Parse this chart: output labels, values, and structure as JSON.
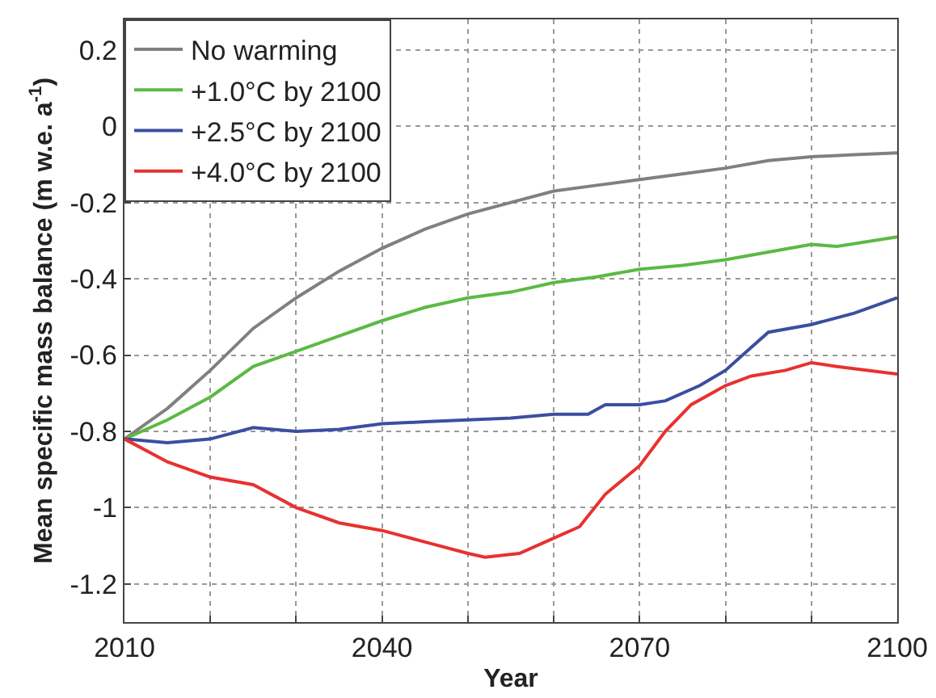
{
  "chart_data": {
    "type": "line",
    "xlabel": "Year",
    "ylabel": "Mean specific mass balance (m w.e. a$^{-1}$)",
    "xlim": [
      2010,
      2100
    ],
    "xticks": [
      2010,
      {
        "value": 2020,
        "label": null
      },
      {
        "value": 2030,
        "label": null
      },
      2040,
      {
        "value": 2050,
        "label": null
      },
      {
        "value": 2060,
        "label": null
      },
      2070,
      {
        "value": 2080,
        "label": null
      },
      {
        "value": 2090,
        "label": null
      },
      2100
    ],
    "ylim": [
      -1.3,
      0.28
    ],
    "yticks": [
      -1.2,
      -1,
      -0.8,
      -0.6,
      -0.4,
      -0.2,
      0,
      0.2
    ],
    "grid": true,
    "legend": "top left",
    "marker": "none",
    "line_style": "solid",
    "series": [
      {
        "name": "No warming",
        "color": "#808080",
        "x": [
          2010,
          2015,
          2020,
          2025,
          2030,
          2035,
          2040,
          2045,
          2050,
          2055,
          2060,
          2065,
          2070,
          2075,
          2080,
          2085,
          2090,
          2095,
          2100
        ],
        "values": [
          -0.82,
          -0.74,
          -0.64,
          -0.53,
          -0.45,
          -0.38,
          -0.32,
          -0.27,
          -0.23,
          -0.2,
          -0.17,
          -0.155,
          -0.14,
          -0.125,
          -0.11,
          -0.09,
          -0.08,
          -0.075,
          -0.07
        ]
      },
      {
        "name": "+1.0°C by 2100",
        "color": "#5cb944",
        "x": [
          2010,
          2015,
          2020,
          2025,
          2030,
          2035,
          2040,
          2045,
          2050,
          2055,
          2060,
          2065,
          2070,
          2075,
          2080,
          2085,
          2090,
          2093,
          2100
        ],
        "values": [
          -0.82,
          -0.77,
          -0.71,
          -0.63,
          -0.59,
          -0.55,
          -0.51,
          -0.475,
          -0.45,
          -0.435,
          -0.41,
          -0.395,
          -0.375,
          -0.365,
          -0.35,
          -0.33,
          -0.31,
          -0.315,
          -0.29
        ]
      },
      {
        "name": "+2.5°C by 2100",
        "color": "#3a4fa0",
        "x": [
          2010,
          2015,
          2020,
          2025,
          2030,
          2035,
          2040,
          2045,
          2050,
          2055,
          2060,
          2064,
          2066,
          2070,
          2073,
          2077,
          2080,
          2083,
          2085,
          2090,
          2095,
          2100
        ],
        "values": [
          -0.82,
          -0.83,
          -0.82,
          -0.79,
          -0.8,
          -0.795,
          -0.78,
          -0.775,
          -0.77,
          -0.765,
          -0.755,
          -0.755,
          -0.73,
          -0.73,
          -0.72,
          -0.68,
          -0.64,
          -0.58,
          -0.54,
          -0.52,
          -0.49,
          -0.45
        ]
      },
      {
        "name": "+4.0°C by 2100",
        "color": "#e8312f",
        "x": [
          2010,
          2015,
          2020,
          2025,
          2030,
          2035,
          2040,
          2045,
          2050,
          2052,
          2056,
          2060,
          2063,
          2066,
          2070,
          2073,
          2076,
          2080,
          2083,
          2087,
          2090,
          2093,
          2100
        ],
        "values": [
          -0.82,
          -0.88,
          -0.92,
          -0.94,
          -1.0,
          -1.04,
          -1.06,
          -1.09,
          -1.12,
          -1.13,
          -1.12,
          -1.08,
          -1.05,
          -0.965,
          -0.89,
          -0.8,
          -0.73,
          -0.68,
          -0.655,
          -0.64,
          -0.62,
          -0.63,
          -0.65
        ]
      }
    ]
  }
}
